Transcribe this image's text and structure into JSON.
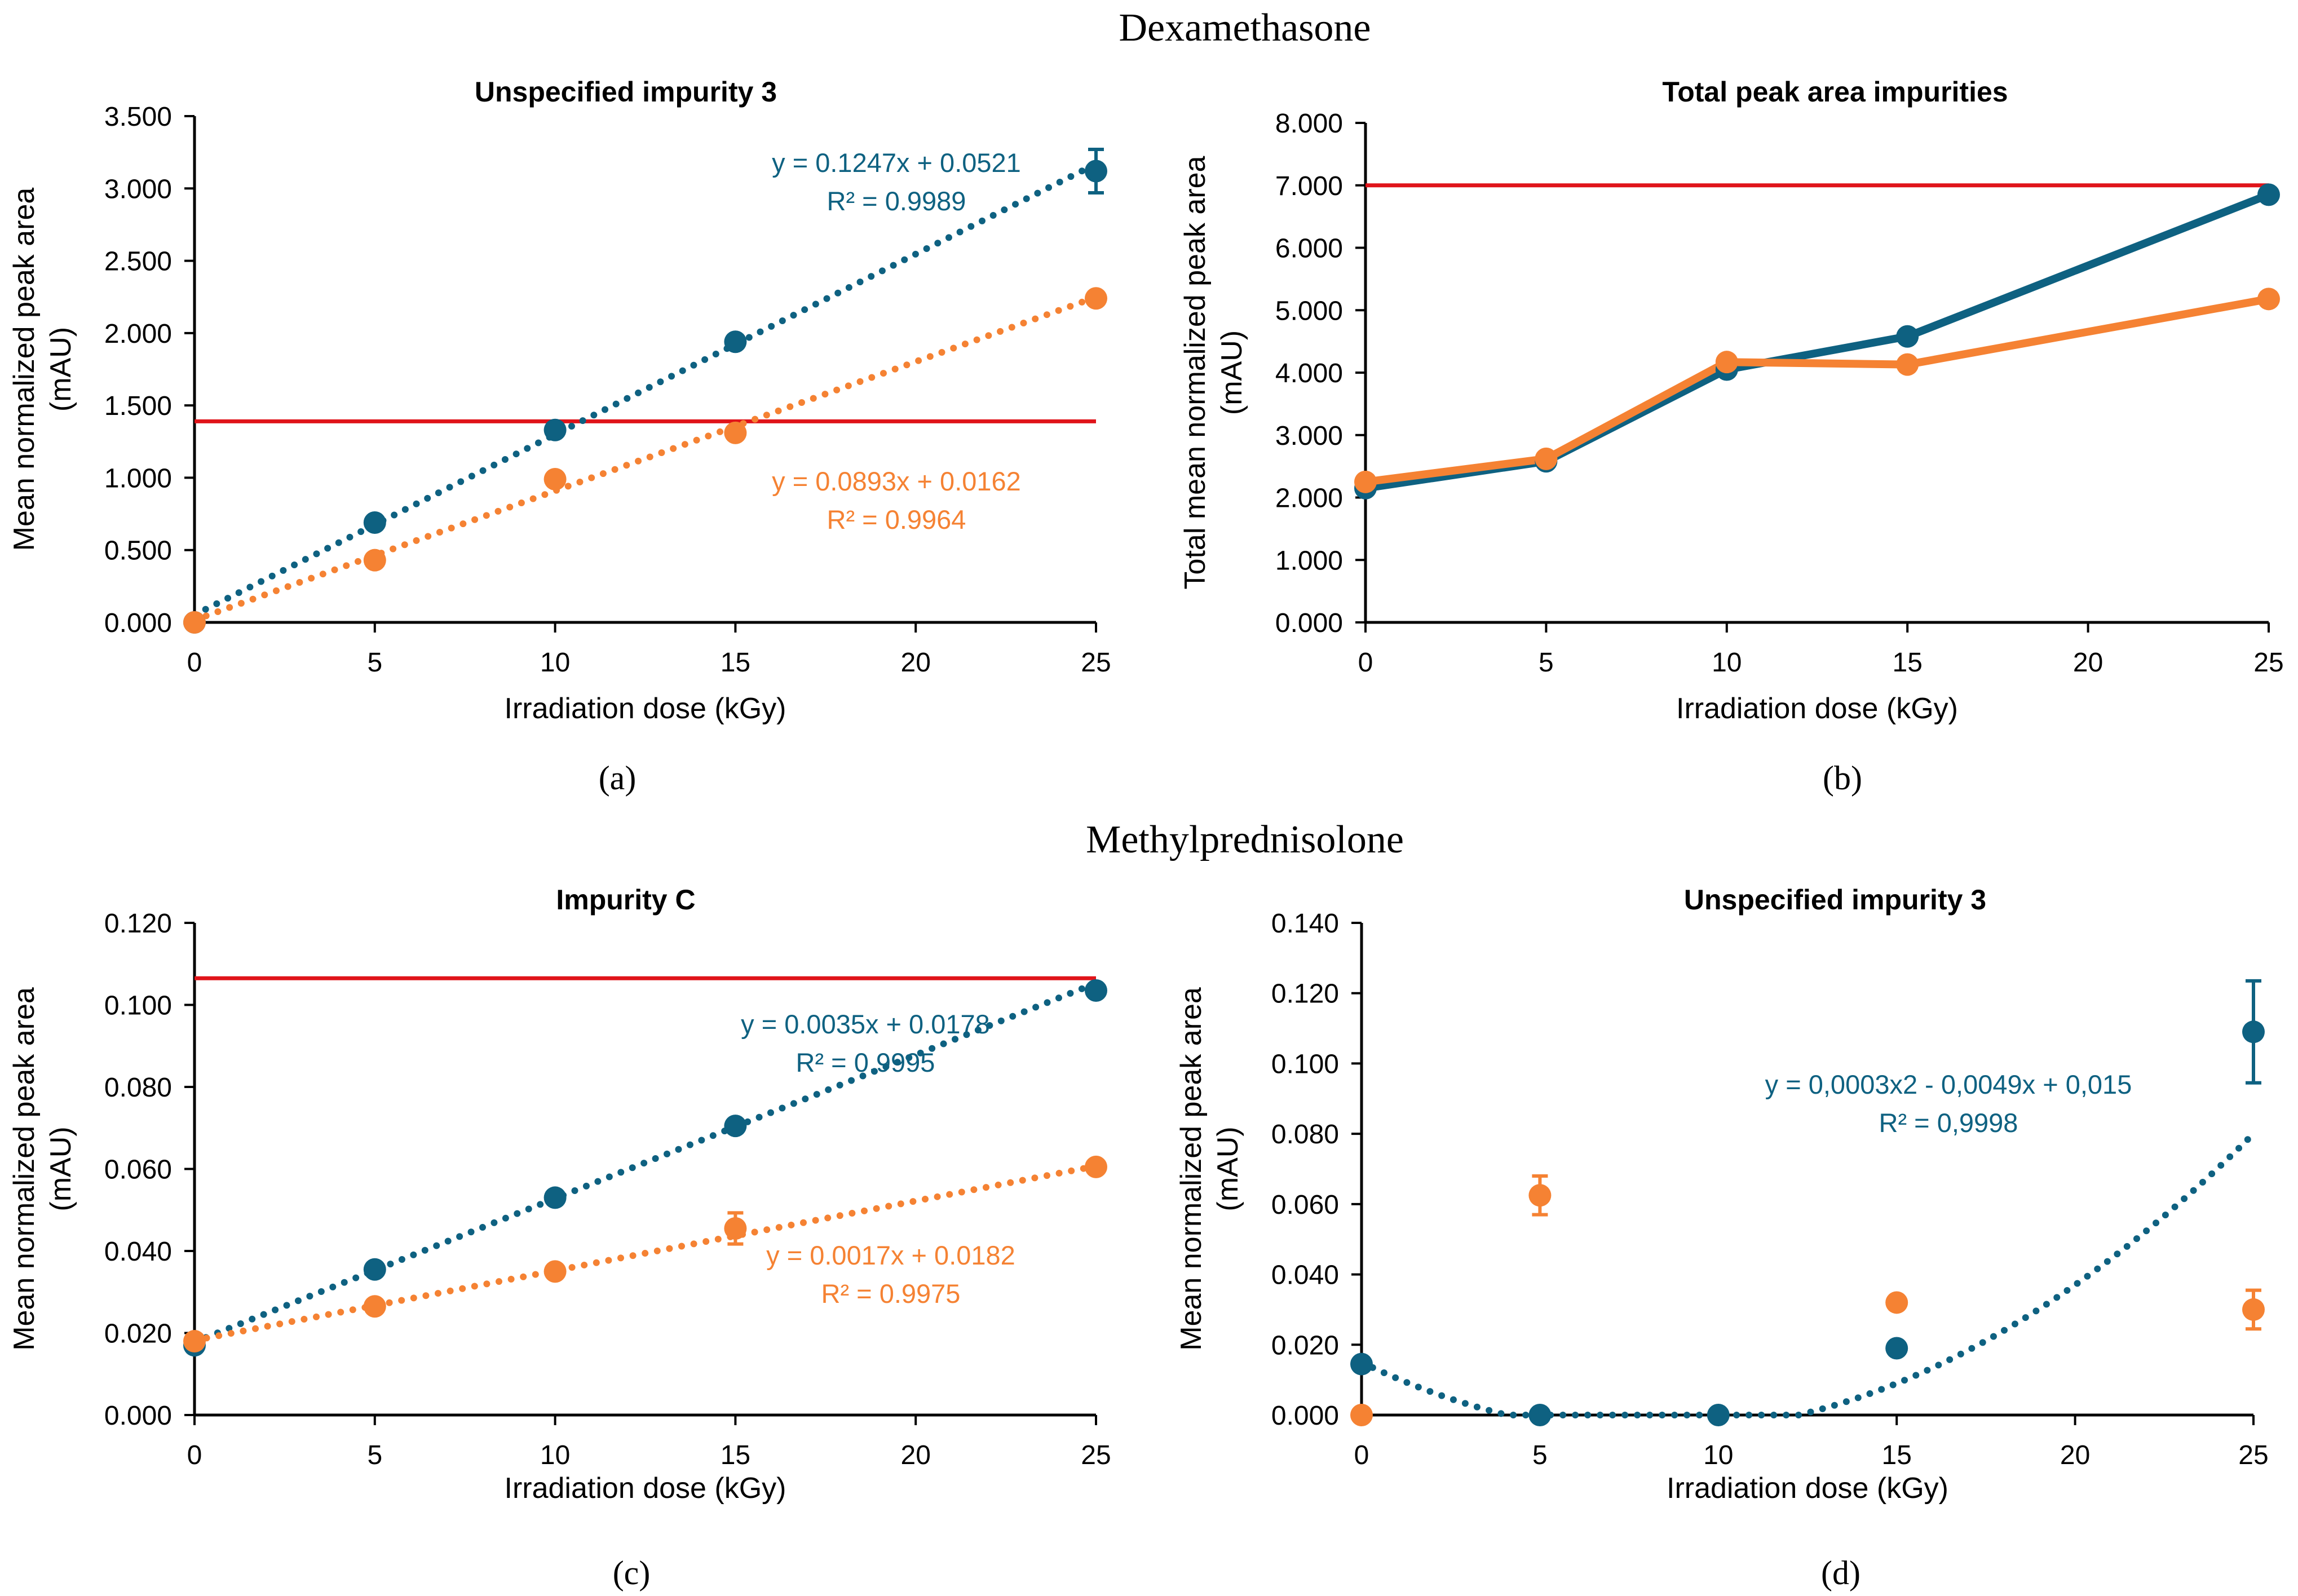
{
  "sections": {
    "top": "Dexamethasone",
    "bottom": "Methylprednisolone"
  },
  "colors": {
    "blue": "#0e6181",
    "orange": "#f58233",
    "red": "#e0141a",
    "axis": "#000000",
    "text": "#000000"
  },
  "chart_data": [
    {
      "id": "a",
      "type": "scatter",
      "caption": "(a)",
      "title": "Unspecified impurity 3",
      "xlabel": "Irradiation dose (kGy)",
      "ylabel": [
        "Mean normalized peak area",
        "(mAU)"
      ],
      "xlim": [
        0,
        25
      ],
      "ylim": [
        0,
        3.5
      ],
      "xticks": [
        0,
        5,
        10,
        15,
        20,
        25
      ],
      "yticks": [
        0,
        0.5,
        1.0,
        1.5,
        2.0,
        2.5,
        3.0,
        3.5
      ],
      "yticklabels": [
        "0.000",
        "0.500",
        "1.000",
        "1.500",
        "2.000",
        "2.500",
        "3.000",
        "3.500"
      ],
      "limit_line": 1.39,
      "series": [
        {
          "name": "blue",
          "color": "blue",
          "x": [
            0,
            5,
            10,
            15,
            25
          ],
          "y": [
            0,
            0.69,
            1.33,
            1.94,
            3.12
          ],
          "err": [
            0,
            0,
            0,
            0,
            0.15
          ],
          "trend": {
            "type": "linear",
            "coef": [
              0.1247,
              0.0521
            ]
          },
          "equation": "y = 0.1247x + 0.0521",
          "r2": "R² = 0.9989"
        },
        {
          "name": "orange",
          "color": "orange",
          "x": [
            0,
            5,
            10,
            15,
            25
          ],
          "y": [
            0,
            0.43,
            0.99,
            1.31,
            2.24
          ],
          "err": [
            0,
            0,
            0,
            0,
            0
          ],
          "trend": {
            "type": "linear",
            "coef": [
              0.0893,
              0.0162
            ]
          },
          "equation": "y = 0.0893x + 0.0162",
          "r2": "R² = 0.9964"
        }
      ]
    },
    {
      "id": "b",
      "type": "line",
      "caption": "(b)",
      "title": "Total peak area impurities",
      "xlabel": "Irradiation dose (kGy)",
      "ylabel": [
        "Total mean normalized peak area",
        "(mAU)"
      ],
      "xlim": [
        0,
        25
      ],
      "ylim": [
        0,
        8
      ],
      "xticks": [
        0,
        5,
        10,
        15,
        20,
        25
      ],
      "yticks": [
        0,
        1,
        2,
        3,
        4,
        5,
        6,
        7,
        8
      ],
      "yticklabels": [
        "0.000",
        "1.000",
        "2.000",
        "3.000",
        "4.000",
        "5.000",
        "6.000",
        "7.000",
        "8.000"
      ],
      "limit_line": 7.0,
      "series": [
        {
          "name": "blue",
          "color": "blue",
          "x": [
            0,
            5,
            10,
            15,
            25
          ],
          "y": [
            2.15,
            2.58,
            4.05,
            4.58,
            6.85
          ]
        },
        {
          "name": "orange",
          "color": "orange",
          "x": [
            0,
            5,
            10,
            15,
            25
          ],
          "y": [
            2.25,
            2.62,
            4.17,
            4.13,
            5.18
          ]
        }
      ]
    },
    {
      "id": "c",
      "type": "scatter",
      "caption": "(c)",
      "title": "Impurity C",
      "xlabel": "Irradiation dose (kGy)",
      "ylabel": [
        "Mean normalized peak area",
        "(mAU)"
      ],
      "xlim": [
        0,
        25
      ],
      "ylim": [
        0,
        0.12
      ],
      "xticks": [
        0,
        5,
        10,
        15,
        20,
        25
      ],
      "yticks": [
        0,
        0.02,
        0.04,
        0.06,
        0.08,
        0.1,
        0.12
      ],
      "yticklabels": [
        "0.000",
        "0.020",
        "0.040",
        "0.060",
        "0.080",
        "0.100",
        "0.120"
      ],
      "limit_line": 0.1065,
      "series": [
        {
          "name": "blue",
          "color": "blue",
          "x": [
            0,
            5,
            10,
            15,
            25
          ],
          "y": [
            0.017,
            0.0355,
            0.053,
            0.0705,
            0.1035
          ],
          "err": [
            0,
            0,
            0,
            0.0015,
            0
          ],
          "trend": {
            "type": "linear",
            "coef": [
              0.0035,
              0.0178
            ]
          },
          "equation": "y = 0.0035x + 0.0178",
          "r2": "R² = 0.9995"
        },
        {
          "name": "orange",
          "color": "orange",
          "x": [
            0,
            5,
            10,
            15,
            25
          ],
          "y": [
            0.018,
            0.0265,
            0.035,
            0.0455,
            0.0605
          ],
          "err": [
            0,
            0,
            0,
            0.0038,
            0
          ],
          "trend": {
            "type": "linear",
            "coef": [
              0.0017,
              0.0182
            ]
          },
          "equation": "y = 0.0017x + 0.0182",
          "r2": "R² = 0.9975"
        }
      ]
    },
    {
      "id": "d",
      "type": "scatter",
      "caption": "(d)",
      "title": "Unspecified impurity 3",
      "xlabel": "Irradiation dose (kGy)",
      "ylabel": [
        "Mean normalized peak area",
        "(mAU)"
      ],
      "xlim": [
        0,
        25
      ],
      "ylim": [
        0,
        0.14
      ],
      "xticks": [
        0,
        5,
        10,
        15,
        20,
        25
      ],
      "yticks": [
        0,
        0.02,
        0.04,
        0.06,
        0.08,
        0.1,
        0.12,
        0.14
      ],
      "yticklabels": [
        "0.000",
        "0.020",
        "0.040",
        "0.060",
        "0.080",
        "0.100",
        "0.120",
        "0.140"
      ],
      "limit_line": null,
      "series": [
        {
          "name": "blue",
          "color": "blue",
          "x": [
            0,
            5,
            10,
            15,
            25
          ],
          "y": [
            0.0145,
            0,
            0,
            0.019,
            0.109
          ],
          "err": [
            0,
            0,
            0,
            0,
            0.0145
          ],
          "trend": {
            "type": "poly2",
            "coef": [
              0.0003,
              -0.0049,
              0.015
            ]
          },
          "equation": "y = 0,0003x2 - 0,0049x + 0,015",
          "r2": "R² = 0,9998"
        },
        {
          "name": "orange",
          "color": "orange",
          "x": [
            0,
            5,
            15,
            25
          ],
          "y": [
            0,
            0.0625,
            0.032,
            0.03
          ],
          "err": [
            0,
            0.0055,
            0,
            0.0055
          ]
        }
      ]
    }
  ]
}
